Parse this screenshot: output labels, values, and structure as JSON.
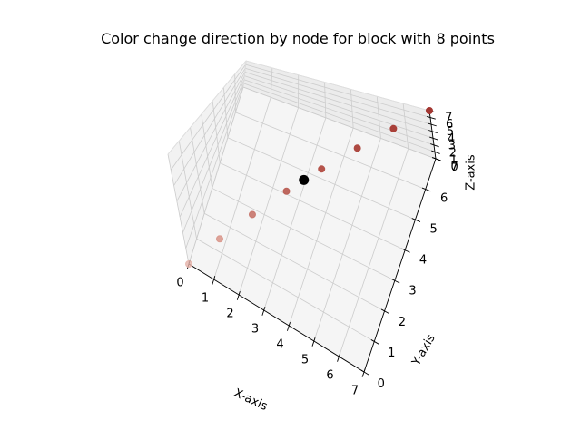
{
  "chart_data": {
    "type": "scatter",
    "projection": "3d",
    "title": "Color change direction by node for block with 8 points",
    "xlabel": "X-axis",
    "ylabel": "Y-axis",
    "zlabel": "Z-axis",
    "xlim": [
      0,
      7
    ],
    "ylim": [
      0,
      7
    ],
    "zlim": [
      0,
      7
    ],
    "x_ticks": [
      0,
      1,
      2,
      3,
      4,
      5,
      6,
      7
    ],
    "y_ticks": [
      0,
      1,
      2,
      3,
      4,
      5,
      6,
      7
    ],
    "z_ticks": [
      0,
      1,
      2,
      3,
      4,
      5,
      6,
      7
    ],
    "grid": true,
    "points": [
      {
        "x": 0,
        "y": 0,
        "z": 0,
        "color": "#e5b1a9",
        "alpha": 0.8
      },
      {
        "x": 1,
        "y": 1,
        "z": 1,
        "color": "#d89488",
        "alpha": 0.85
      },
      {
        "x": 2,
        "y": 2,
        "z": 2,
        "color": "#c8766b",
        "alpha": 0.9
      },
      {
        "x": 3,
        "y": 3,
        "z": 3,
        "color": "#bb5f55",
        "alpha": 0.95
      },
      {
        "x": 4,
        "y": 4,
        "z": 4,
        "color": "#b5544b",
        "alpha": 1
      },
      {
        "x": 5,
        "y": 5,
        "z": 5,
        "color": "#ae4a42",
        "alpha": 1
      },
      {
        "x": 6,
        "y": 6,
        "z": 6,
        "color": "#a94039",
        "alpha": 1
      },
      {
        "x": 7,
        "y": 7,
        "z": 7,
        "color": "#a33631",
        "alpha": 1
      }
    ],
    "highlight_point": {
      "x": 3.5,
      "y": 3.5,
      "z": 3.5,
      "color": "#000000"
    }
  }
}
